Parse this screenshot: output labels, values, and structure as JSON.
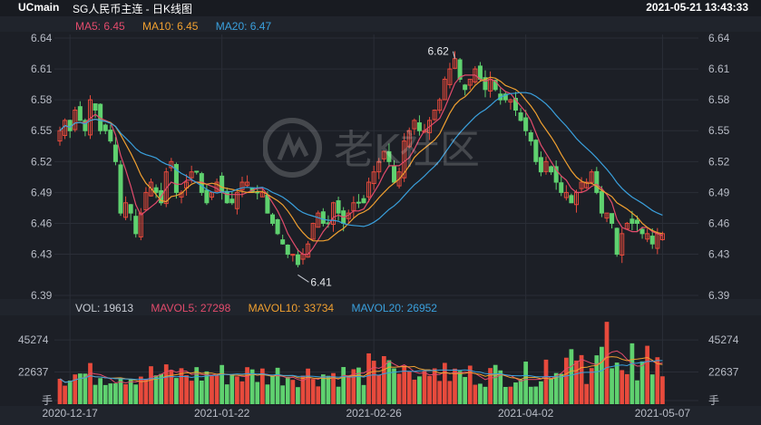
{
  "header": {
    "symbol": "UCmain",
    "instrument": "SG人民币主连 - 日K线图",
    "datetime": "2021-05-21 13:43:33"
  },
  "ma_legend": {
    "ma5": "MA5: 6.45",
    "ma10": "MA10: 6.45",
    "ma20": "MA20: 6.47"
  },
  "vol_legend": {
    "vol": "VOL: 19613",
    "mavol5": "MAVOL5: 27298",
    "mavol10": "MAVOL10: 33734",
    "mavol20": "MAVOL20: 26952"
  },
  "colors": {
    "up": "#e74a3c",
    "down": "#5fd16f",
    "ma5": "#e24b6c",
    "ma10": "#f0a030",
    "ma20": "#3aa0dd",
    "grid": "#2a2e37",
    "axis_text": "#b8bcc6"
  },
  "chart_data": [
    {
      "type": "candlestick",
      "title": "SG人民币主连 - 日K线图",
      "ylim": [
        6.39,
        6.64
      ],
      "y_ticks": [
        "6.64",
        "6.61",
        "6.58",
        "6.55",
        "6.52",
        "6.49",
        "6.46",
        "6.43",
        "6.39"
      ],
      "x_ticks": [
        "2020-12-17",
        "2021-01-22",
        "2021-02-26",
        "2021-04-02",
        "2021-05-07"
      ],
      "annotations": [
        {
          "label": "6.62",
          "value": 6.62,
          "kind": "max"
        },
        {
          "label": "6.41",
          "value": 6.41,
          "kind": "min"
        }
      ],
      "close_series_approx": [
        6.55,
        6.56,
        6.55,
        6.57,
        6.56,
        6.55,
        6.58,
        6.57,
        6.55,
        6.55,
        6.54,
        6.52,
        6.47,
        6.48,
        6.47,
        6.45,
        6.47,
        6.49,
        6.5,
        6.49,
        6.48,
        6.51,
        6.52,
        6.49,
        6.49,
        6.5,
        6.51,
        6.51,
        6.49,
        6.48,
        6.49,
        6.5,
        6.49,
        6.48,
        6.48,
        6.49,
        6.5,
        6.5,
        6.49,
        6.49,
        6.49,
        6.47,
        6.46,
        6.45,
        6.44,
        6.43,
        6.43,
        6.42,
        6.43,
        6.44,
        6.46,
        6.47,
        6.46,
        6.46,
        6.48,
        6.47,
        6.46,
        6.47,
        6.48,
        6.48,
        6.48,
        6.5,
        6.51,
        6.52,
        6.53,
        6.52,
        6.5,
        6.51,
        6.54,
        6.55,
        6.56,
        6.55,
        6.55,
        6.56,
        6.57,
        6.58,
        6.6,
        6.61,
        6.62,
        6.6,
        6.59,
        6.6,
        6.61,
        6.6,
        6.59,
        6.6,
        6.59,
        6.58,
        6.58,
        6.58,
        6.57,
        6.56,
        6.55,
        6.54,
        6.52,
        6.51,
        6.52,
        6.51,
        6.5,
        6.49,
        6.49,
        6.48,
        6.49,
        6.5,
        6.5,
        6.51,
        6.49,
        6.47,
        6.47,
        6.46,
        6.43,
        6.45,
        6.46,
        6.46,
        6.46,
        6.45,
        6.45,
        6.44,
        6.45,
        6.45
      ]
    },
    {
      "type": "bar",
      "title": "VOL",
      "ylim": [
        0,
        60000
      ],
      "y_ticks": [
        "45274",
        "22637",
        "手"
      ],
      "series": [
        {
          "name": "VOL",
          "latest": 19613
        },
        {
          "name": "MAVOL5",
          "latest": 27298
        },
        {
          "name": "MAVOL10",
          "latest": 33734
        },
        {
          "name": "MAVOL20",
          "latest": 26952
        }
      ]
    }
  ],
  "watermark": "老K社区"
}
